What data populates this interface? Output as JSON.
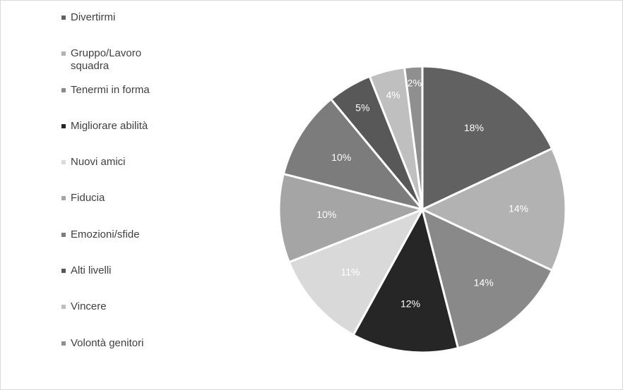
{
  "chart_data": {
    "type": "pie",
    "title": "",
    "legend_position": "left",
    "slices": [
      {
        "label": "Divertirmi",
        "value": 18,
        "value_label": "18%",
        "color": "#616161",
        "label_color": "#ffffff"
      },
      {
        "label": "Gruppo/Lavoro squadra",
        "value": 14,
        "value_label": "14%",
        "color": "#b2b2b2",
        "label_color": "#ffffff"
      },
      {
        "label": "Tenermi in forma",
        "value": 14,
        "value_label": "14%",
        "color": "#898989",
        "label_color": "#ffffff"
      },
      {
        "label": "Migliorare abilità",
        "value": 12,
        "value_label": "12%",
        "color": "#262626",
        "label_color": "#ffffff"
      },
      {
        "label": "Nuovi amici",
        "value": 11,
        "value_label": "11%",
        "color": "#d9d9d9",
        "label_color": "#ffffff"
      },
      {
        "label": "Fiducia",
        "value": 10,
        "value_label": "10%",
        "color": "#a5a5a5",
        "label_color": "#ffffff"
      },
      {
        "label": "Emozioni/sfide",
        "value": 10,
        "value_label": "10%",
        "color": "#7c7c7c",
        "label_color": "#ffffff"
      },
      {
        "label": "Alti livelli",
        "value": 5,
        "value_label": "5%",
        "color": "#585858",
        "label_color": "#ffffff"
      },
      {
        "label": "Vincere",
        "value": 4,
        "value_label": "4%",
        "color": "#bfbfbf",
        "label_color": "#ffffff"
      },
      {
        "label": "Volontà genitori",
        "value": 2,
        "value_label": "2%",
        "color": "#8f8f8f",
        "label_color": "#ffffff"
      }
    ]
  }
}
